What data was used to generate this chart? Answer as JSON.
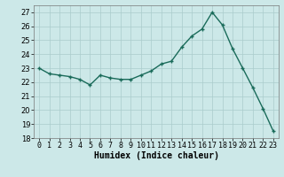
{
  "x": [
    0,
    1,
    2,
    3,
    4,
    5,
    6,
    7,
    8,
    9,
    10,
    11,
    12,
    13,
    14,
    15,
    16,
    17,
    18,
    19,
    20,
    21,
    22,
    23
  ],
  "y": [
    23.0,
    22.6,
    22.5,
    22.4,
    22.2,
    21.8,
    22.5,
    22.3,
    22.2,
    22.2,
    22.5,
    22.8,
    23.3,
    23.5,
    24.5,
    25.3,
    25.8,
    27.0,
    26.1,
    24.4,
    23.0,
    21.6,
    20.1,
    18.5
  ],
  "line_color": "#1a6b5a",
  "marker": "+",
  "marker_size": 3,
  "marker_linewidth": 1.0,
  "linewidth": 1.0,
  "background_color": "#cce8e8",
  "grid_color": "#aacccc",
  "xlabel": "Humidex (Indice chaleur)",
  "xlim": [
    -0.5,
    23.5
  ],
  "ylim": [
    18,
    27.5
  ],
  "yticks": [
    18,
    19,
    20,
    21,
    22,
    23,
    24,
    25,
    26,
    27
  ],
  "xticks": [
    0,
    1,
    2,
    3,
    4,
    5,
    6,
    7,
    8,
    9,
    10,
    11,
    12,
    13,
    14,
    15,
    16,
    17,
    18,
    19,
    20,
    21,
    22,
    23
  ],
  "tick_fontsize": 6,
  "xlabel_fontsize": 7
}
